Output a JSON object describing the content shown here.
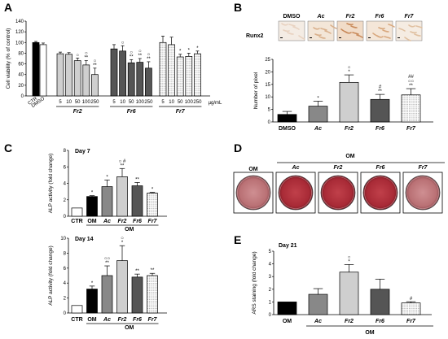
{
  "panels": {
    "A": "A",
    "B": "B",
    "C": "C",
    "D": "D",
    "E": "E"
  },
  "colors": {
    "black": "#000000",
    "dark": "#555555",
    "mid": "#888888",
    "light": "#cfcfcf",
    "white": "#ffffff",
    "dish": "#b8343f"
  },
  "chart_data": [
    {
      "id": "A",
      "type": "bar",
      "ylabel": "Cell viability (% of control)",
      "ylim": [
        0,
        140
      ],
      "yticks": [
        "0",
        "20",
        "40",
        "60",
        "80",
        "100",
        "120",
        "140"
      ],
      "unit": "µg/mL",
      "controls": [
        {
          "label": "CTR",
          "value": 100,
          "err": 2,
          "fill": "black"
        },
        {
          "label": "DMSO",
          "value": 96,
          "err": 3,
          "fill": "white"
        }
      ],
      "groups": [
        {
          "name": "Fr2",
          "fill": "light",
          "doses": [
            "5",
            "10",
            "50",
            "100",
            "250"
          ],
          "values": [
            79,
            78,
            66,
            58,
            40
          ],
          "errs": [
            3,
            3,
            5,
            8,
            12
          ],
          "marks": [
            "",
            "",
            "○",
            "○\n**",
            "○\n**"
          ]
        },
        {
          "name": "Fr6",
          "fill": "dark",
          "doses": [
            "5",
            "10",
            "50",
            "100",
            "250"
          ],
          "values": [
            88,
            84,
            62,
            63,
            52
          ],
          "errs": [
            8,
            10,
            6,
            7,
            12
          ],
          "marks": [
            "",
            "○",
            "○\n**",
            "○\n**",
            "○\n**"
          ]
        },
        {
          "name": "Fr7",
          "fill": "dotted",
          "doses": [
            "5",
            "10",
            "50",
            "100",
            "250"
          ],
          "values": [
            100,
            96,
            73,
            74,
            79
          ],
          "errs": [
            12,
            14,
            5,
            6,
            5
          ],
          "marks": [
            "",
            "",
            "*",
            "*",
            "*"
          ]
        }
      ]
    },
    {
      "id": "B",
      "type": "bar",
      "stain_label": "Runx2",
      "image_labels": [
        "DMSO",
        "Ac",
        "Fr2",
        "Fr6",
        "Fr7"
      ],
      "ylabel": "Number of pixel",
      "ylim": [
        0,
        25
      ],
      "yticks": [
        "0",
        "5",
        "10",
        "15",
        "20",
        "25"
      ],
      "categories": [
        "DMSO",
        "Ac",
        "Fr2",
        "Fr6",
        "Fr7"
      ],
      "values": [
        3,
        6.3,
        15.8,
        9,
        10.8
      ],
      "errs": [
        1.2,
        2,
        3,
        2,
        2.5
      ],
      "fills": [
        "black",
        "mid",
        "light",
        "dark",
        "dotted"
      ],
      "marks": [
        "",
        "*",
        "○\n*",
        "#\n**",
        "##\n○○\n**"
      ]
    },
    {
      "id": "C1",
      "type": "bar",
      "subtitle": "Day 7",
      "ylabel": "ALP activity (fold change)",
      "ylim": [
        0,
        8
      ],
      "yticks": [
        "0",
        "2",
        "4",
        "6",
        "8"
      ],
      "categories": [
        "CTR",
        "OM",
        "Ac",
        "Fr2",
        "Fr6",
        "Fr7"
      ],
      "values": [
        1,
        2.4,
        3.6,
        4.8,
        3.7,
        2.8
      ],
      "errs": [
        0,
        0.1,
        0.8,
        1,
        0.4,
        0.1
      ],
      "fills": [
        "white",
        "black",
        "mid",
        "light",
        "dark",
        "dotted"
      ],
      "marks": [
        "",
        "*",
        "*",
        "○ #\n**",
        "**",
        "*"
      ],
      "group_label": "OM"
    },
    {
      "id": "C2",
      "type": "bar",
      "subtitle": "Day 14",
      "ylabel": "ALP activity (fold change)",
      "ylim": [
        0,
        10
      ],
      "yticks": [
        "0",
        "2",
        "4",
        "6",
        "8",
        "10"
      ],
      "categories": [
        "CTR",
        "OM",
        "Ac",
        "Fr2",
        "Fr6",
        "Fr7"
      ],
      "values": [
        1,
        3.2,
        5,
        7,
        4.8,
        5
      ],
      "errs": [
        0,
        0.4,
        1.3,
        2,
        0.4,
        0.3
      ],
      "fills": [
        "white",
        "black",
        "mid",
        "light",
        "dark",
        "dotted"
      ],
      "marks": [
        "",
        "*",
        "○○\n**",
        "○\n*",
        "**",
        "**"
      ],
      "group_label": "OM"
    },
    {
      "id": "D",
      "type": "image",
      "top_label": "OM",
      "wells": [
        "OM",
        "Ac",
        "Fr2",
        "Fr6",
        "Fr7"
      ]
    },
    {
      "id": "E",
      "type": "bar",
      "subtitle": "Day 21",
      "ylabel": "ARS staining (fold change)",
      "ylim": [
        0,
        5
      ],
      "yticks": [
        "0",
        "1",
        "2",
        "3",
        "4",
        "5"
      ],
      "categories": [
        "OM",
        "Ac",
        "Fr2",
        "Fr6",
        "Fr7"
      ],
      "values": [
        1,
        1.6,
        3.35,
        2,
        0.92
      ],
      "errs": [
        0,
        0.45,
        0.6,
        0.8,
        0.1
      ],
      "fills": [
        "black",
        "mid",
        "light",
        "dark",
        "dotted"
      ],
      "marks": [
        "",
        "",
        "○\n*",
        "",
        "#"
      ],
      "group_label": "OM"
    }
  ]
}
